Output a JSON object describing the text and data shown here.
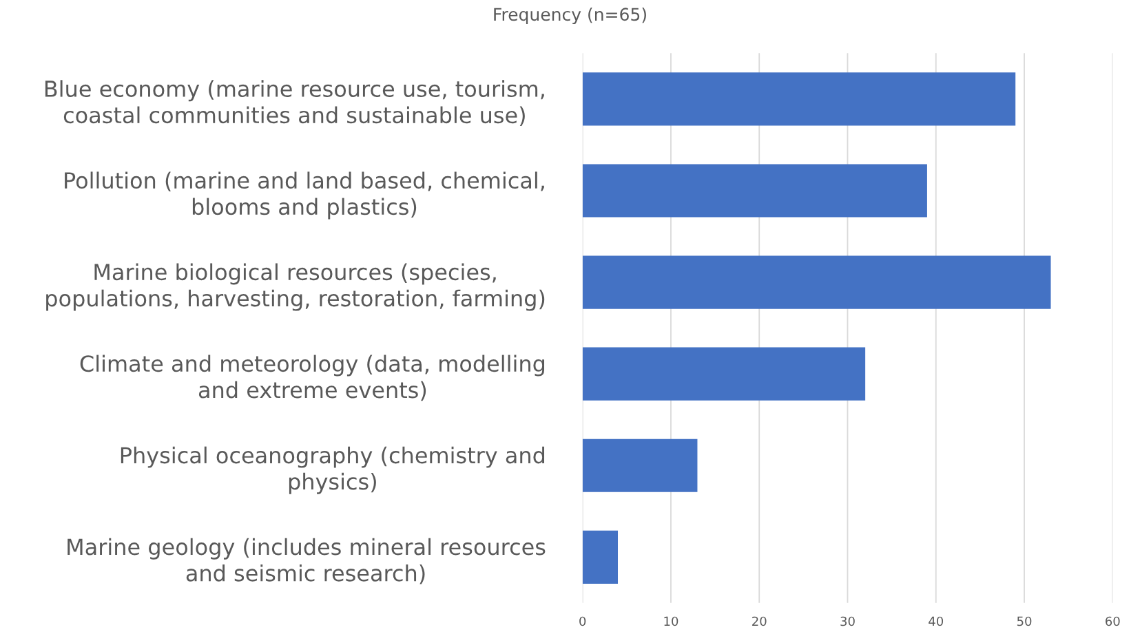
{
  "chart_data": {
    "type": "bar",
    "orientation": "horizontal",
    "title": "Frequency (n=65)",
    "categories": [
      "Blue economy (marine resource use, tourism,\ncoastal communities and sustainable use)",
      "Pollution (marine and land based, chemical,\nblooms and plastics)",
      "Marine biological resources (species,\npopulations, harvesting, restoration, farming)",
      "Climate and meteorology (data, modelling\nand extreme events)",
      "Physical oceanography (chemistry and\nphysics)",
      "Marine geology (includes mineral resources\nand seismic research)"
    ],
    "values": [
      49,
      39,
      53,
      32,
      13,
      4
    ],
    "color": "#4472c4",
    "xlim": [
      0,
      60
    ],
    "xticks": [
      0,
      10,
      20,
      30,
      40,
      50,
      60
    ],
    "grid": "x"
  }
}
